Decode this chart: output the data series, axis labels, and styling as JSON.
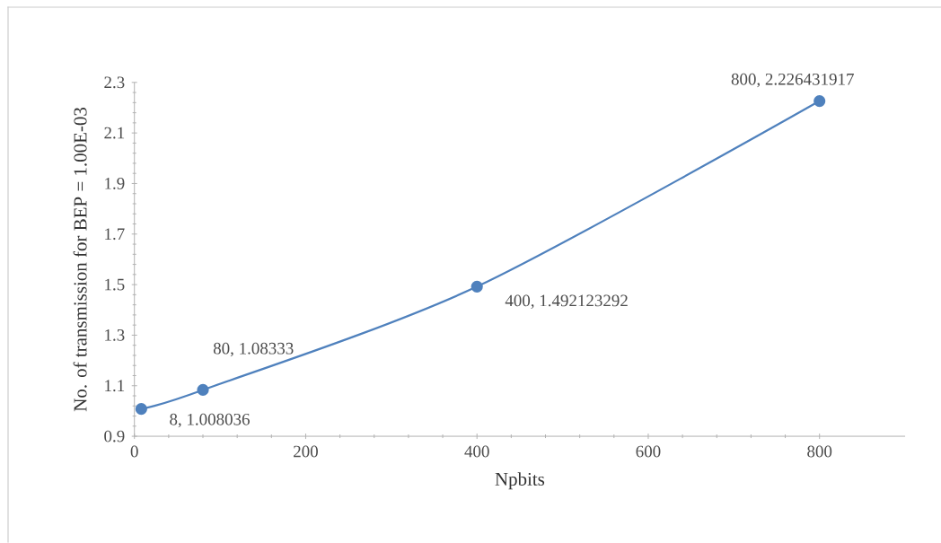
{
  "chart_data": {
    "type": "line",
    "xlabel": "Npbits",
    "ylabel": "No. of transmission for BEP = 1.00E-03",
    "x": [
      8,
      80,
      400,
      800
    ],
    "series": [
      {
        "color": "#4f81bd",
        "values": [
          1.008036,
          1.08333,
          1.492123292,
          2.226431917
        ],
        "value_labels": [
          "8, 1.008036",
          "80, 1.08333",
          "400, 1.492123292",
          "800, 2.226431917"
        ]
      }
    ],
    "xlim": [
      0,
      900
    ],
    "xticks": [
      0,
      200,
      400,
      600,
      800
    ],
    "ylim": [
      0.9,
      2.3
    ],
    "yticks": [
      0.9,
      1.1,
      1.3,
      1.5,
      1.7,
      1.9,
      2.1,
      2.3
    ],
    "marker": "circle",
    "line_style": "solid",
    "grid": false
  }
}
